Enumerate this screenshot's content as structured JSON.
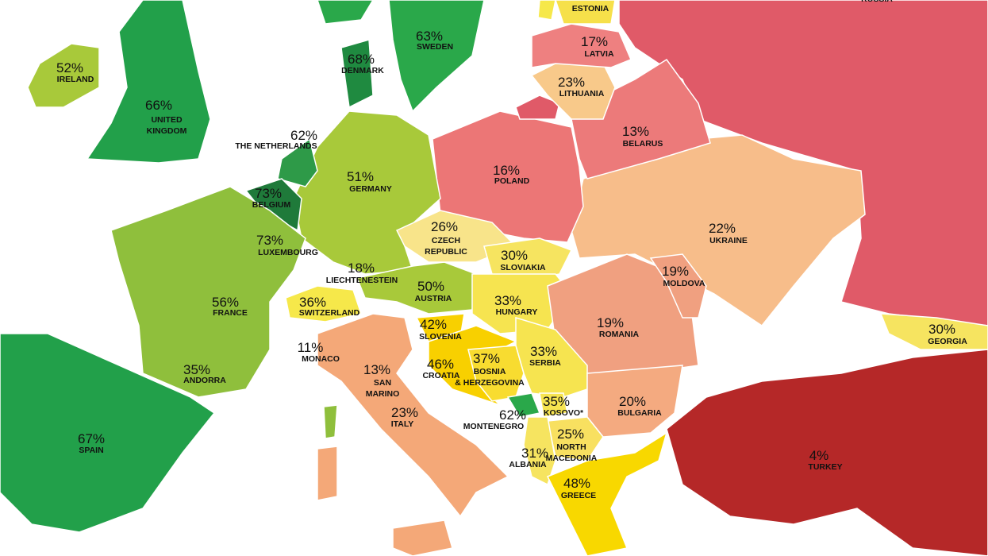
{
  "countries": [
    {
      "percent": "52%",
      "name": [
        "IRELAND"
      ]
    },
    {
      "percent": "66%",
      "name": [
        "UNITED",
        "KINGDOM"
      ]
    },
    {
      "percent": "68%",
      "name": [
        "DENMARK"
      ]
    },
    {
      "percent": "63%",
      "name": [
        "SWEDEN"
      ]
    },
    {
      "percent": "62%",
      "name": [
        "THE NETHERLANDS"
      ]
    },
    {
      "percent": "73%",
      "name": [
        "BELGIUM"
      ]
    },
    {
      "percent": "73%",
      "name": [
        "LUXEMBOURG"
      ]
    },
    {
      "percent": "51%",
      "name": [
        "GERMANY"
      ]
    },
    {
      "percent": "56%",
      "name": [
        "FRANCE"
      ]
    },
    {
      "percent": "67%",
      "name": [
        "SPAIN"
      ]
    },
    {
      "percent": "35%",
      "name": [
        "ANDORRA"
      ]
    },
    {
      "percent": "36%",
      "name": [
        "SWITZERLAND"
      ]
    },
    {
      "percent": "18%",
      "name": [
        "LIECHTENESTEIN"
      ]
    },
    {
      "percent": "50%",
      "name": [
        "AUSTRIA"
      ]
    },
    {
      "percent": "26%",
      "name": [
        "CZECH",
        "REPUBLIC"
      ]
    },
    {
      "percent": "30%",
      "name": [
        "SLOVIAKIA"
      ]
    },
    {
      "percent": "16%",
      "name": [
        "POLAND"
      ]
    },
    {
      "percent": "23%",
      "name": [
        "LITHUANIA"
      ]
    },
    {
      "percent": "17%",
      "name": [
        "LATVIA"
      ]
    },
    {
      "name": [
        "ESTONIA"
      ]
    },
    {
      "percent": "13%",
      "name": [
        "BELARUS"
      ]
    },
    {
      "percent": "22%",
      "name": [
        "UKRAINE"
      ]
    },
    {
      "percent": "19%",
      "name": [
        "MOLDOVA"
      ]
    },
    {
      "percent": "33%",
      "name": [
        "HUNGARY"
      ]
    },
    {
      "percent": "19%",
      "name": [
        "ROMANIA"
      ]
    },
    {
      "percent": "42%",
      "name": [
        "SLOVENIA"
      ]
    },
    {
      "percent": "46%",
      "name": [
        "CROATIA"
      ]
    },
    {
      "percent": "37%",
      "name": [
        "BOSNIA",
        "& HERZEGOVINA"
      ]
    },
    {
      "percent": "33%",
      "name": [
        "SERBIA"
      ]
    },
    {
      "percent": "11%",
      "name": [
        "MONACO"
      ]
    },
    {
      "percent": "13%",
      "name": [
        "SAN",
        "MARINO"
      ]
    },
    {
      "percent": "23%",
      "name": [
        "ITALY"
      ]
    },
    {
      "percent": "35%",
      "name": [
        "KOSOVO*"
      ]
    },
    {
      "percent": "62%",
      "name": [
        "MONTENEGRO"
      ]
    },
    {
      "percent": "20%",
      "name": [
        "BULGARIA"
      ]
    },
    {
      "percent": "25%",
      "name": [
        "NORTH",
        "MACEDONIA"
      ]
    },
    {
      "percent": "31%",
      "name": [
        "ALBANIA"
      ]
    },
    {
      "percent": "48%",
      "name": [
        "GREECE"
      ]
    },
    {
      "percent": "4%",
      "name": [
        "TURKEY"
      ]
    },
    {
      "percent": "30%",
      "name": [
        "GEORGIA"
      ]
    },
    {
      "name": [
        "RUSSIA"
      ]
    }
  ]
}
